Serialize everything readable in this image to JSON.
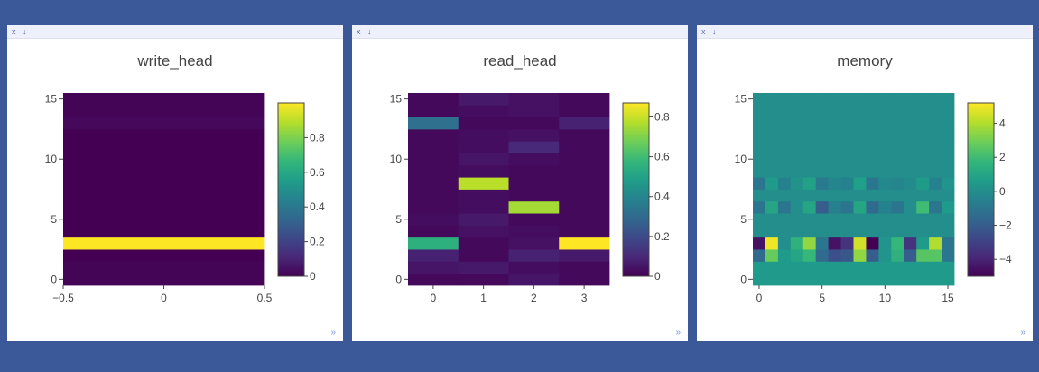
{
  "panes": [
    {
      "close_label": "x",
      "menu_label": "↓",
      "corner": "»"
    },
    {
      "close_label": "x",
      "menu_label": "↓",
      "corner": "»"
    },
    {
      "close_label": "x",
      "menu_label": "↓",
      "corner": "»"
    }
  ],
  "colorscale": [
    "#440154",
    "#482878",
    "#3e4989",
    "#31688e",
    "#26828e",
    "#1f9e89",
    "#35b779",
    "#6ece58",
    "#b5de2b",
    "#fde725"
  ],
  "chart_data": [
    {
      "type": "heatmap",
      "title": "write_head",
      "x": [
        0
      ],
      "y": [
        0,
        1,
        2,
        3,
        4,
        5,
        6,
        7,
        8,
        9,
        10,
        11,
        12,
        13,
        14,
        15
      ],
      "xlim": [
        -0.5,
        0.5
      ],
      "ylim": [
        -0.5,
        15.5
      ],
      "xticks": [
        "−0.5",
        "0",
        "0.5"
      ],
      "xtick_values": [
        -0.5,
        0,
        0.5
      ],
      "yticks": [
        "0",
        "5",
        "10",
        "15"
      ],
      "ytick_values": [
        0,
        5,
        10,
        15
      ],
      "zmin": 0,
      "zmax": 1.0,
      "colorbar_ticks": [
        "0",
        "0.2",
        "0.4",
        "0.6",
        "0.8"
      ],
      "colorbar_tick_values": [
        0,
        0.2,
        0.4,
        0.6,
        0.8
      ],
      "z": [
        [
          0.01
        ],
        [
          0.01
        ],
        [
          0.0
        ],
        [
          1.0
        ],
        [
          0.0
        ],
        [
          0.0
        ],
        [
          0.0
        ],
        [
          0.0
        ],
        [
          0.0
        ],
        [
          0.0
        ],
        [
          0.0
        ],
        [
          0.0
        ],
        [
          0.0
        ],
        [
          0.02
        ],
        [
          0.01
        ],
        [
          0.01
        ]
      ]
    },
    {
      "type": "heatmap",
      "title": "read_head",
      "x": [
        0,
        1,
        2,
        3
      ],
      "y": [
        0,
        1,
        2,
        3,
        4,
        5,
        6,
        7,
        8,
        9,
        10,
        11,
        12,
        13,
        14,
        15
      ],
      "xlim": [
        -0.5,
        3.5
      ],
      "ylim": [
        -0.5,
        15.5
      ],
      "xticks": [
        "0",
        "1",
        "2",
        "3"
      ],
      "xtick_values": [
        0,
        1,
        2,
        3
      ],
      "yticks": [
        "0",
        "5",
        "10",
        "15"
      ],
      "ytick_values": [
        0,
        5,
        10,
        15
      ],
      "zmin": 0,
      "zmax": 0.87,
      "colorbar_ticks": [
        "0",
        "0.2",
        "0.4",
        "0.6",
        "0.8"
      ],
      "colorbar_tick_values": [
        0,
        0.2,
        0.4,
        0.6,
        0.8
      ],
      "z": [
        [
          0.02,
          0.02,
          0.05,
          0.02
        ],
        [
          0.05,
          0.06,
          0.03,
          0.02
        ],
        [
          0.08,
          0.02,
          0.08,
          0.06
        ],
        [
          0.55,
          0.02,
          0.04,
          0.87
        ],
        [
          0.02,
          0.04,
          0.03,
          0.02
        ],
        [
          0.03,
          0.06,
          0.02,
          0.02
        ],
        [
          0.02,
          0.03,
          0.75,
          0.02
        ],
        [
          0.02,
          0.03,
          0.02,
          0.02
        ],
        [
          0.02,
          0.78,
          0.02,
          0.02
        ],
        [
          0.02,
          0.03,
          0.02,
          0.02
        ],
        [
          0.02,
          0.05,
          0.03,
          0.02
        ],
        [
          0.02,
          0.03,
          0.1,
          0.02
        ],
        [
          0.02,
          0.03,
          0.04,
          0.02
        ],
        [
          0.32,
          0.02,
          0.02,
          0.08
        ],
        [
          0.02,
          0.03,
          0.04,
          0.02
        ],
        [
          0.02,
          0.06,
          0.04,
          0.02
        ]
      ]
    },
    {
      "type": "heatmap",
      "title": "memory",
      "x": [
        0,
        1,
        2,
        3,
        4,
        5,
        6,
        7,
        8,
        9,
        10,
        11,
        12,
        13,
        14,
        15
      ],
      "y": [
        0,
        1,
        2,
        3,
        4,
        5,
        6,
        7,
        8,
        9,
        10,
        11,
        12,
        13,
        14,
        15
      ],
      "xlim": [
        -0.5,
        15.5
      ],
      "ylim": [
        -0.5,
        15.5
      ],
      "xticks": [
        "0",
        "5",
        "10",
        "15"
      ],
      "xtick_values": [
        0,
        5,
        10,
        15
      ],
      "yticks": [
        "0",
        "5",
        "10",
        "15"
      ],
      "ytick_values": [
        0,
        5,
        10,
        15
      ],
      "zmin": -5,
      "zmax": 5.2,
      "colorbar_ticks": [
        "−4",
        "−2",
        "0",
        "2",
        "4"
      ],
      "colorbar_tick_values": [
        -4,
        -2,
        0,
        2,
        4
      ],
      "z": [
        [
          0.5,
          0.5,
          0.5,
          0.5,
          0.5,
          0.5,
          0.5,
          0.5,
          0.5,
          0.5,
          0.5,
          0.5,
          0.5,
          0.5,
          0.5,
          0.5
        ],
        [
          0.5,
          0.5,
          0.5,
          0.5,
          0.5,
          0.5,
          0.5,
          0.5,
          0.5,
          0.5,
          0.5,
          0.5,
          0.5,
          0.5,
          0.5,
          0.5
        ],
        [
          -1.5,
          2.8,
          0.5,
          1.0,
          1.8,
          -1.5,
          -2.5,
          -2.2,
          3.5,
          -2.0,
          0.3,
          1.5,
          -2.0,
          2.5,
          2.5,
          -1.0
        ],
        [
          -4.5,
          5.0,
          0.0,
          1.5,
          3.5,
          -1.0,
          -4.5,
          -3.5,
          4.5,
          -5.0,
          0.3,
          1.8,
          -3.5,
          0.5,
          4.0,
          -1.0
        ],
        [
          0.0,
          0.0,
          0.0,
          0.0,
          0.0,
          0.0,
          0.0,
          0.0,
          0.0,
          0.0,
          0.0,
          0.0,
          0.0,
          0.0,
          0.0,
          0.0
        ],
        [
          0.0,
          0.0,
          0.0,
          0.0,
          0.0,
          0.0,
          0.0,
          0.0,
          0.0,
          0.0,
          0.0,
          0.0,
          0.0,
          0.0,
          0.0,
          0.0
        ],
        [
          -1.0,
          1.0,
          -1.0,
          0.0,
          1.0,
          -2.0,
          -0.5,
          -1.0,
          1.0,
          -1.5,
          -0.5,
          -1.0,
          0.0,
          2.0,
          -1.0,
          0.5
        ],
        [
          0.0,
          0.0,
          0.0,
          0.0,
          0.0,
          0.0,
          0.0,
          0.0,
          0.0,
          0.0,
          0.0,
          0.0,
          0.0,
          0.0,
          0.0,
          0.0
        ],
        [
          -1.0,
          0.5,
          -0.5,
          0.2,
          0.8,
          -0.8,
          -0.3,
          -0.5,
          0.7,
          -1.0,
          -0.2,
          -0.3,
          -0.1,
          0.6,
          -0.5,
          0.3
        ],
        [
          0.0,
          0.0,
          0.0,
          0.0,
          0.0,
          0.0,
          0.0,
          0.0,
          0.0,
          0.0,
          0.0,
          0.0,
          0.0,
          0.0,
          0.0,
          0.0
        ],
        [
          0.0,
          0.0,
          0.0,
          0.0,
          0.0,
          0.0,
          0.0,
          0.0,
          0.0,
          0.0,
          0.0,
          0.0,
          0.0,
          0.0,
          0.0,
          0.0
        ],
        [
          0.0,
          0.0,
          0.0,
          0.0,
          0.0,
          0.0,
          0.0,
          0.0,
          0.0,
          0.0,
          0.0,
          0.0,
          0.0,
          0.0,
          0.0,
          0.0
        ],
        [
          0.0,
          0.0,
          0.0,
          0.0,
          0.0,
          0.0,
          0.0,
          0.0,
          0.0,
          0.0,
          0.0,
          0.0,
          0.0,
          0.0,
          0.0,
          0.0
        ],
        [
          0.0,
          0.0,
          0.0,
          0.0,
          0.0,
          0.0,
          0.0,
          0.0,
          0.0,
          0.0,
          0.0,
          0.0,
          0.0,
          0.0,
          0.0,
          0.0
        ],
        [
          0.0,
          0.0,
          0.0,
          0.0,
          0.0,
          0.0,
          0.0,
          0.0,
          0.0,
          0.0,
          0.0,
          0.0,
          0.0,
          0.0,
          0.0,
          0.0
        ],
        [
          0.0,
          0.0,
          0.0,
          0.0,
          0.0,
          0.0,
          0.0,
          0.0,
          0.0,
          0.0,
          0.0,
          0.0,
          0.0,
          0.0,
          0.0,
          0.0
        ]
      ]
    }
  ]
}
